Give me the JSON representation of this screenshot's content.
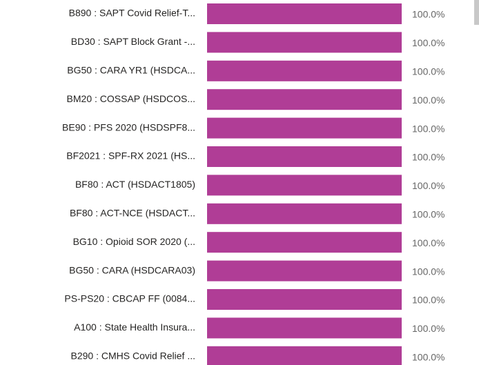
{
  "chart_data": {
    "type": "bar",
    "orientation": "horizontal",
    "categories": [
      "B890 : SAPT Covid Relief-T...",
      "BD30 : SAPT Block Grant -...",
      "BG50 : CARA YR1 (HSDCA...",
      "BM20 : COSSAP (HSDCOS...",
      "BE90 : PFS 2020 (HSDSPF8...",
      "BF2021 : SPF-RX 2021 (HS...",
      "BF80 : ACT (HSDACT1805)",
      "BF80 : ACT-NCE (HSDACT...",
      "BG10 : Opioid SOR 2020 (...",
      "BG50 : CARA (HSDCARA03)",
      "PS-PS20 : CBCAP FF (0084...",
      "A100 : State Health Insura...",
      "B290 : CMHS Covid Relief ..."
    ],
    "values": [
      100,
      100,
      100,
      100,
      100,
      100,
      100,
      100,
      100,
      100,
      100,
      100,
      100
    ],
    "value_labels": [
      "100.0%",
      "100.0%",
      "100.0%",
      "100.0%",
      "100.0%",
      "100.0%",
      "100.0%",
      "100.0%",
      "100.0%",
      "100.0%",
      "100.0%",
      "100.0%",
      "100.0%"
    ],
    "color": "#b03d96",
    "xlim": [
      0,
      100
    ]
  }
}
